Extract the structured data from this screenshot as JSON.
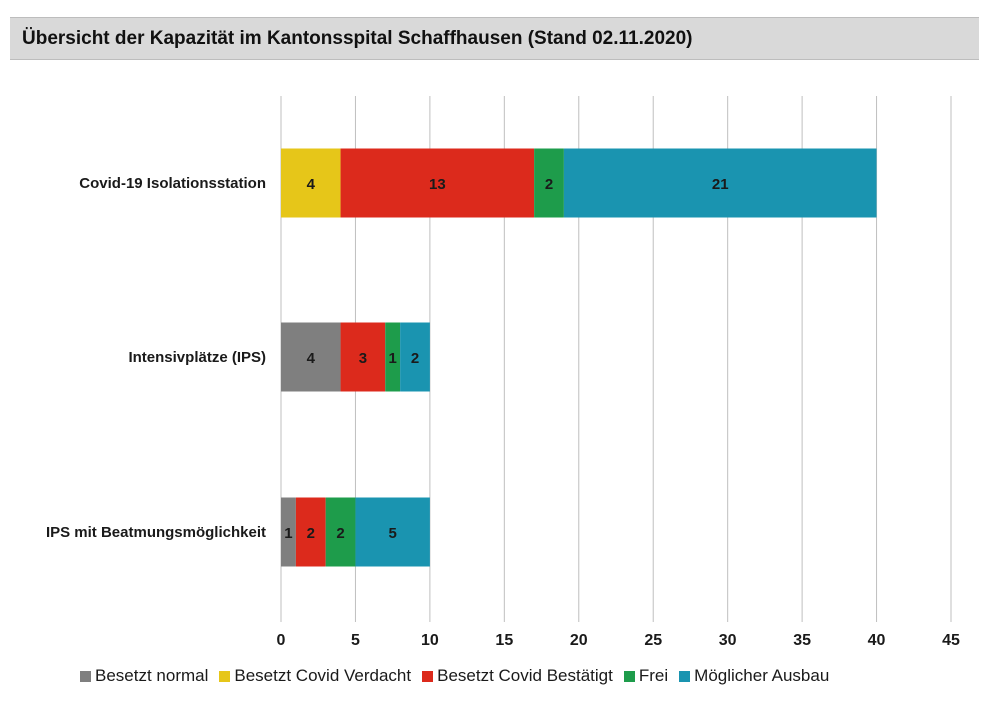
{
  "title": "Übersicht der Kapazität im Kantonsspital Schaffhausen (Stand 02.11.2020)",
  "chart_data": {
    "type": "bar",
    "orientation": "horizontal",
    "stacked": true,
    "categories": [
      "Covid-19 Isolationsstation",
      "Intensivplätze (IPS)",
      "IPS mit Beatmungsmöglichkeit"
    ],
    "series": [
      {
        "name": "Besetzt normal",
        "color": "#7f7f7f",
        "values": [
          0,
          4,
          1
        ]
      },
      {
        "name": "Besetzt Covid Verdacht",
        "color": "#e6c619",
        "values": [
          4,
          0,
          0
        ]
      },
      {
        "name": "Besetzt Covid Bestätigt",
        "color": "#dc2a1c",
        "values": [
          13,
          3,
          2
        ]
      },
      {
        "name": "Frei",
        "color": "#1e9c4b",
        "values": [
          2,
          1,
          2
        ]
      },
      {
        "name": "Möglicher Ausbau",
        "color": "#1a94b0",
        "values": [
          21,
          2,
          5
        ]
      }
    ],
    "xlim": [
      0,
      45
    ],
    "xticks": [
      0,
      5,
      10,
      15,
      20,
      25,
      30,
      35,
      40,
      45
    ],
    "grid": "vertical",
    "legend": "bottom"
  }
}
